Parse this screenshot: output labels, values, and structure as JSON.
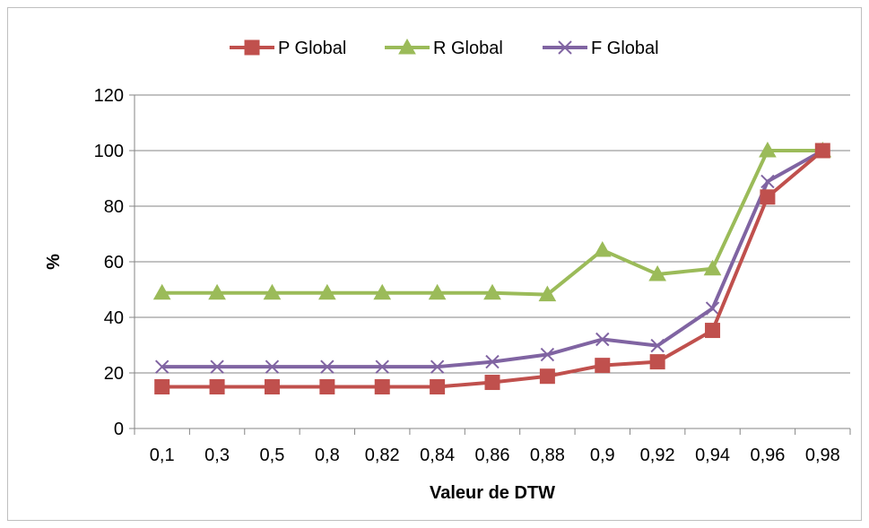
{
  "chart_data": {
    "type": "line",
    "title": "",
    "xlabel": "Valeur de DTW",
    "ylabel": "%",
    "categories": [
      "0,1",
      "0,3",
      "0,5",
      "0,8",
      "0,82",
      "0,84",
      "0,86",
      "0,88",
      "0,9",
      "0,92",
      "0,94",
      "0,96",
      "0,98"
    ],
    "ylim": [
      0,
      120
    ],
    "yticks": [
      "0",
      "20",
      "40",
      "60",
      "80",
      "100",
      "120"
    ],
    "grid": "horizontal",
    "legend_position": "top",
    "series": [
      {
        "name": "P Global",
        "color": "#C0504D",
        "marker": "square",
        "values": [
          15,
          15,
          15,
          15,
          15,
          15,
          16.6,
          18.8,
          22.7,
          24,
          35.3,
          83.3,
          100
        ]
      },
      {
        "name": "R Global",
        "color": "#9BBB59",
        "marker": "triangle",
        "values": [
          48.8,
          48.8,
          48.8,
          48.8,
          48.8,
          48.8,
          48.8,
          48.2,
          64.2,
          55.5,
          57.5,
          100,
          100
        ]
      },
      {
        "name": "F Global",
        "color": "#8064A2",
        "marker": "x",
        "values": [
          22.2,
          22.2,
          22.2,
          22.2,
          22.2,
          22.2,
          24,
          26.6,
          32.1,
          29.8,
          43.2,
          88.9,
          100
        ]
      }
    ]
  }
}
